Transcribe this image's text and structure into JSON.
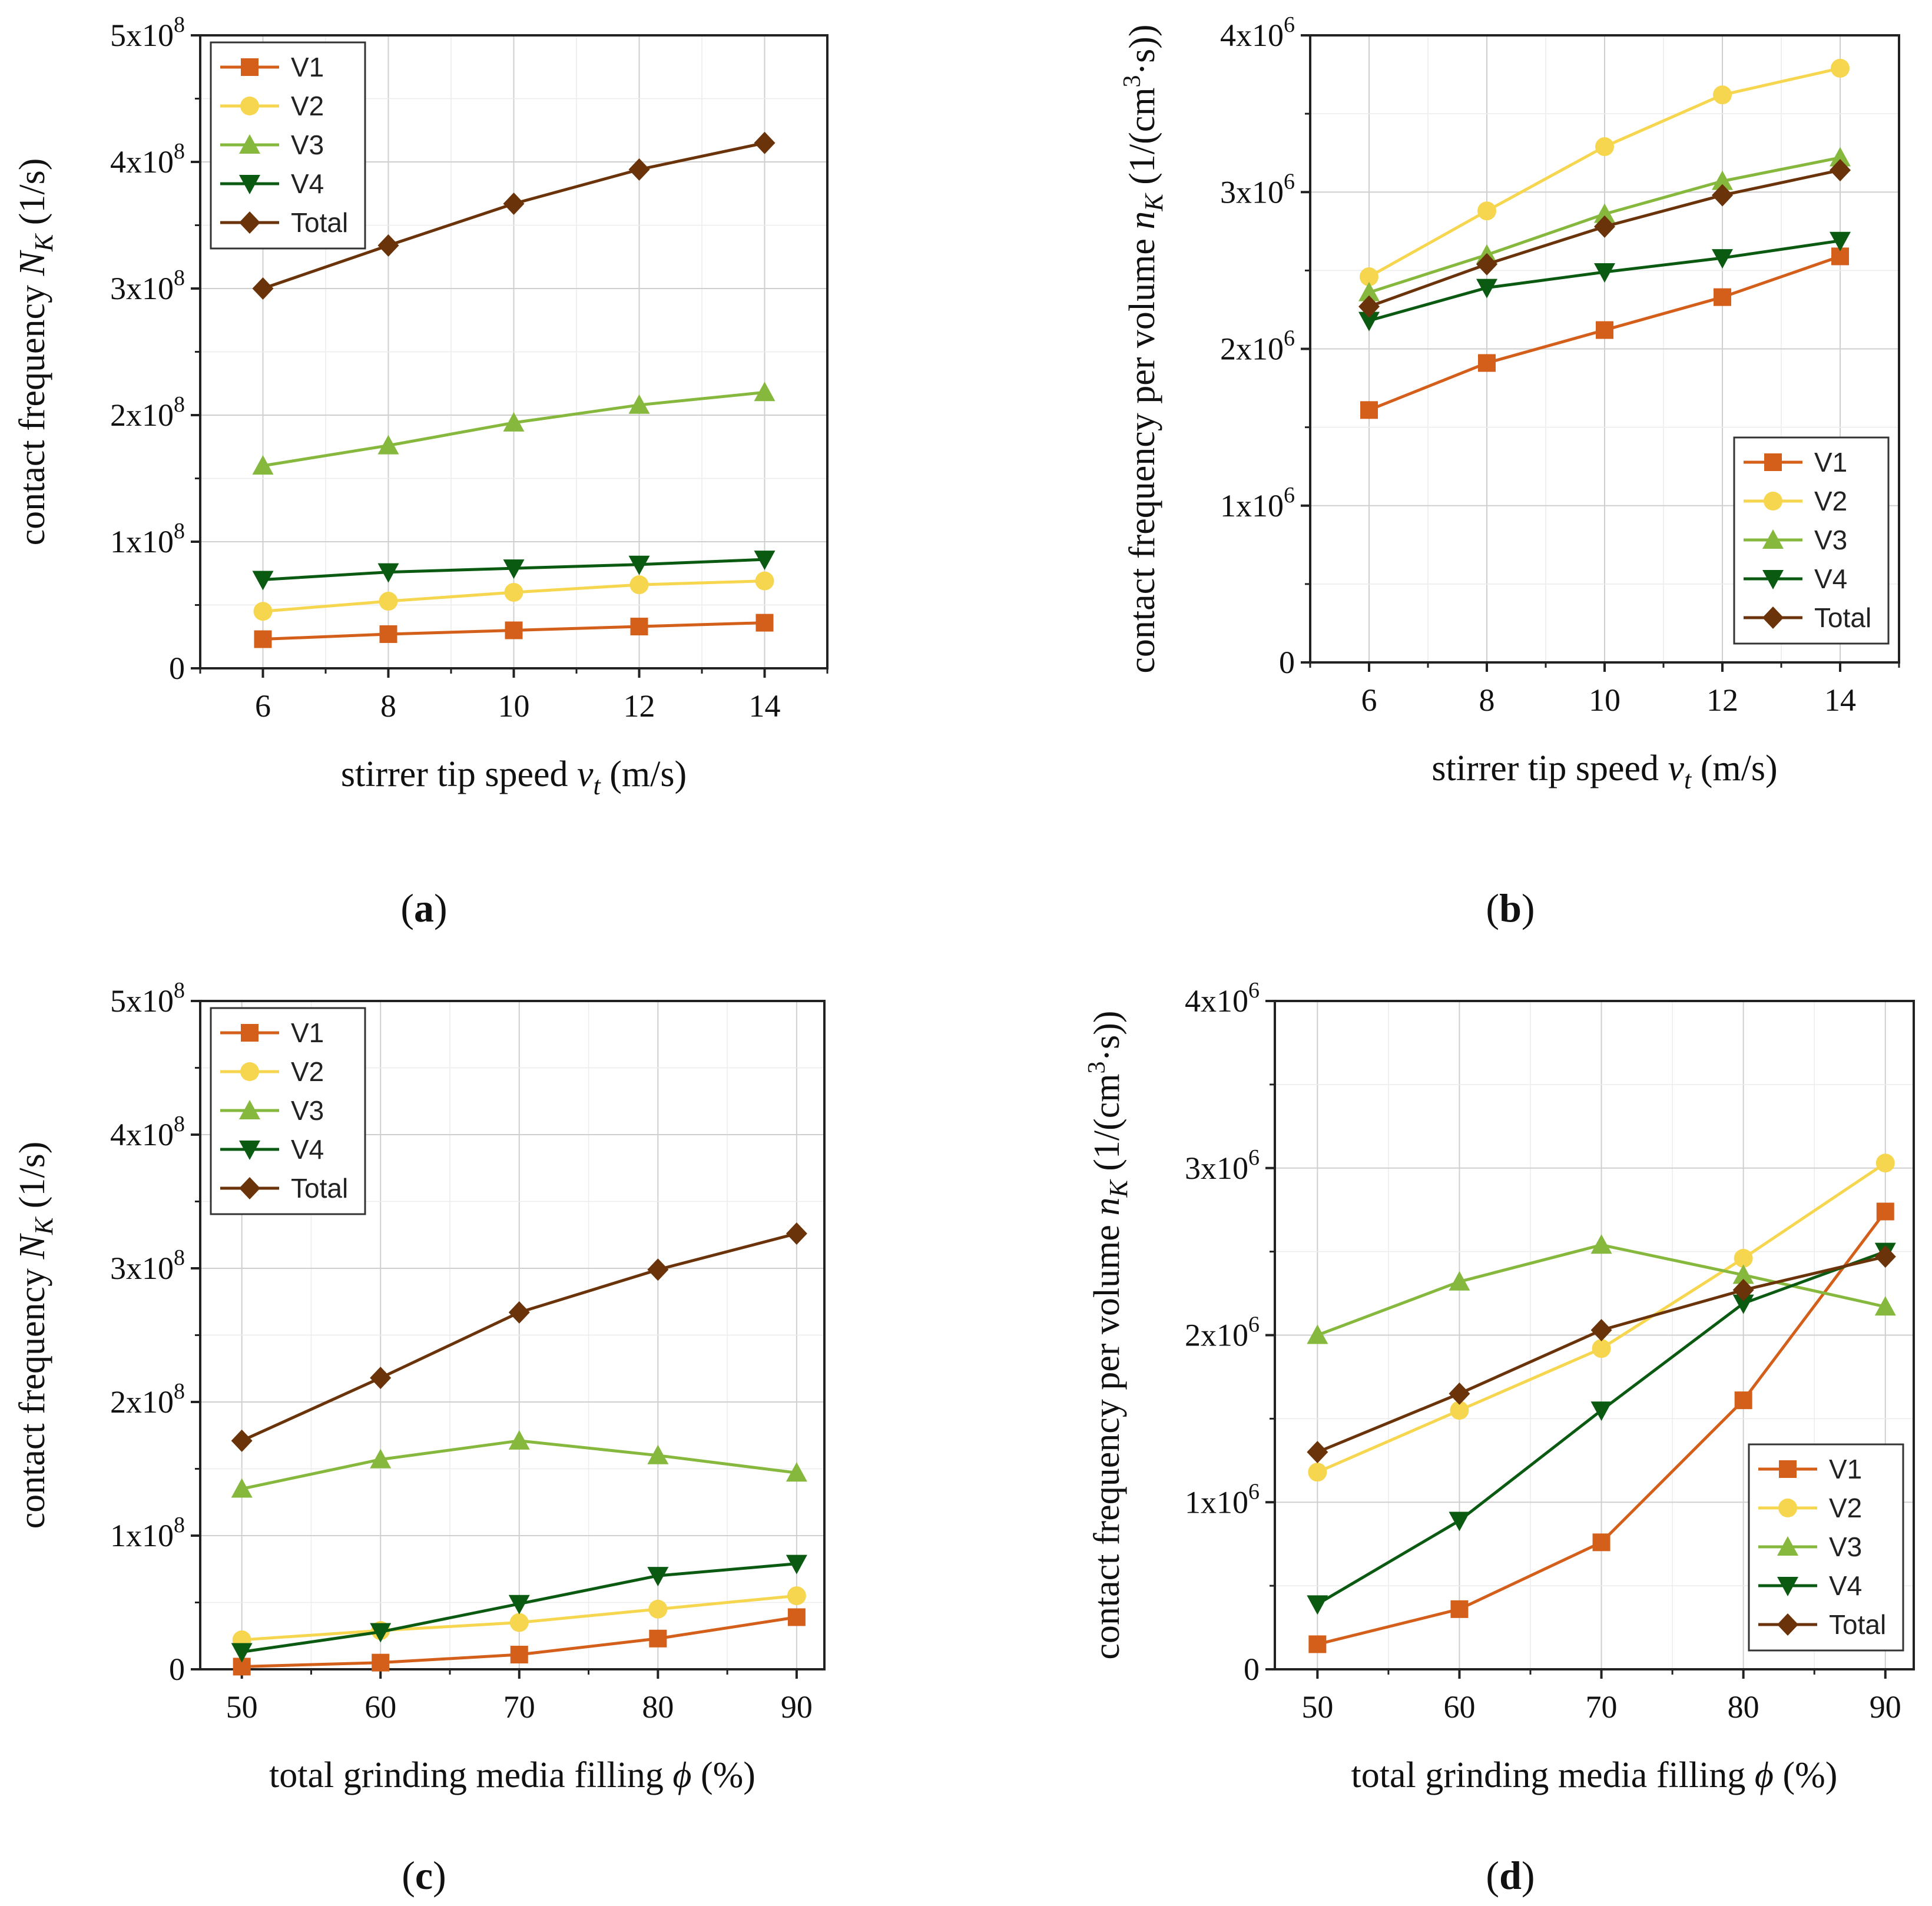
{
  "colors": {
    "V1": "#d35f1b",
    "V2": "#f7d64f",
    "V3": "#86b83e",
    "V4": "#0b5a12",
    "Total": "#6b3309"
  },
  "markers": {
    "V1": "square",
    "V2": "circle",
    "V3": "triangle-up",
    "V4": "triangle-down",
    "Total": "diamond"
  },
  "chart_data": [
    {
      "id": "a",
      "panel_label": "(a)",
      "panel_letter": "a",
      "type": "line",
      "xlabel": "stirrer tip speed v_t (m/s)",
      "xlabel_prefix": "stirrer tip speed ",
      "xlabel_var": "v",
      "xlabel_sub": "t",
      "xlabel_suffix": " (m/s)",
      "ylabel": "contact frequency N_K (1/s)",
      "ylabel_prefix": "contact frequency ",
      "ylabel_var": "N",
      "ylabel_sub": "K",
      "ylabel_suffix": " (1/s)",
      "xlim": [
        5,
        15
      ],
      "ylim": [
        0,
        500000000
      ],
      "xticks": [
        6,
        8,
        10,
        12,
        14
      ],
      "xtick_labels": [
        "6",
        "8",
        "10",
        "12",
        "14"
      ],
      "yticks": [
        0,
        100000000,
        200000000,
        300000000,
        400000000,
        500000000
      ],
      "ytick_labels": [
        {
          "m": "0",
          "e": ""
        },
        {
          "m": "1x10",
          "e": "8"
        },
        {
          "m": "2x10",
          "e": "8"
        },
        {
          "m": "3x10",
          "e": "8"
        },
        {
          "m": "4x10",
          "e": "8"
        },
        {
          "m": "5x10",
          "e": "8"
        }
      ],
      "legend_position": "top-left",
      "x": [
        6,
        8,
        10,
        12,
        14
      ],
      "series": [
        {
          "name": "V1",
          "values": [
            23000000,
            27000000,
            30000000,
            33000000,
            36000000
          ]
        },
        {
          "name": "V2",
          "values": [
            45000000,
            53000000,
            60000000,
            66000000,
            69000000
          ]
        },
        {
          "name": "V3",
          "values": [
            160000000,
            176000000,
            194000000,
            208000000,
            218000000
          ]
        },
        {
          "name": "V4",
          "values": [
            70000000,
            76000000,
            79000000,
            82000000,
            86000000
          ]
        },
        {
          "name": "Total",
          "values": [
            300000000,
            334000000,
            367000000,
            394000000,
            415000000
          ]
        }
      ]
    },
    {
      "id": "b",
      "panel_label": "(b)",
      "panel_letter": "b",
      "type": "line",
      "xlabel": "stirrer tip speed v_t (m/s)",
      "xlabel_prefix": "stirrer tip speed ",
      "xlabel_var": "v",
      "xlabel_sub": "t",
      "xlabel_suffix": " (m/s)",
      "ylabel": "contact frequency per volume n_K (1/(cm^3·s))",
      "ylabel_prefix": "contact frequency per volume ",
      "ylabel_var": "n",
      "ylabel_sub": "K",
      "ylabel_suffix_a": " (1/(cm",
      "ylabel_sup": "3",
      "ylabel_suffix_b": "·s))",
      "xlim": [
        5,
        15
      ],
      "ylim": [
        0,
        4000000
      ],
      "xticks": [
        6,
        8,
        10,
        12,
        14
      ],
      "xtick_labels": [
        "6",
        "8",
        "10",
        "12",
        "14"
      ],
      "yticks": [
        0,
        1000000,
        2000000,
        3000000,
        4000000
      ],
      "ytick_labels": [
        {
          "m": "0",
          "e": ""
        },
        {
          "m": "1x10",
          "e": "6"
        },
        {
          "m": "2x10",
          "e": "6"
        },
        {
          "m": "3x10",
          "e": "6"
        },
        {
          "m": "4x10",
          "e": "6"
        }
      ],
      "legend_position": "bottom-right",
      "x": [
        6,
        8,
        10,
        12,
        14
      ],
      "series": [
        {
          "name": "V1",
          "values": [
            1610000,
            1910000,
            2120000,
            2330000,
            2590000
          ]
        },
        {
          "name": "V2",
          "values": [
            2460000,
            2880000,
            3290000,
            3620000,
            3790000
          ]
        },
        {
          "name": "V3",
          "values": [
            2360000,
            2600000,
            2860000,
            3070000,
            3220000
          ]
        },
        {
          "name": "V4",
          "values": [
            2180000,
            2390000,
            2490000,
            2580000,
            2690000
          ]
        },
        {
          "name": "Total",
          "values": [
            2270000,
            2540000,
            2780000,
            2980000,
            3140000
          ]
        }
      ]
    },
    {
      "id": "c",
      "panel_label": "(c)",
      "panel_letter": "c",
      "type": "line",
      "xlabel": "total grinding media filling ϕ (%)",
      "xlabel_prefix": "total grinding media filling ",
      "xlabel_var": "ϕ",
      "xlabel_sub": "",
      "xlabel_suffix": " (%)",
      "ylabel": "contact frequency N_K (1/s)",
      "ylabel_prefix": "contact frequency ",
      "ylabel_var": "N",
      "ylabel_sub": "K",
      "ylabel_suffix": " (1/s)",
      "xlim": [
        47,
        92
      ],
      "ylim": [
        0,
        500000000
      ],
      "xticks": [
        50,
        60,
        70,
        80,
        90
      ],
      "xtick_labels": [
        "50",
        "60",
        "70",
        "80",
        "90"
      ],
      "yticks": [
        0,
        100000000,
        200000000,
        300000000,
        400000000,
        500000000
      ],
      "ytick_labels": [
        {
          "m": "0",
          "e": ""
        },
        {
          "m": "1x10",
          "e": "8"
        },
        {
          "m": "2x10",
          "e": "8"
        },
        {
          "m": "3x10",
          "e": "8"
        },
        {
          "m": "4x10",
          "e": "8"
        },
        {
          "m": "5x10",
          "e": "8"
        }
      ],
      "legend_position": "top-left",
      "x": [
        50,
        60,
        70,
        80,
        90
      ],
      "series": [
        {
          "name": "V1",
          "values": [
            2000000,
            5000000,
            11000000,
            23000000,
            39000000
          ]
        },
        {
          "name": "V2",
          "values": [
            22000000,
            29000000,
            35000000,
            45000000,
            55000000
          ]
        },
        {
          "name": "V3",
          "values": [
            135000000,
            157000000,
            171000000,
            160000000,
            147000000
          ]
        },
        {
          "name": "V4",
          "values": [
            13000000,
            28000000,
            49000000,
            70000000,
            79000000
          ]
        },
        {
          "name": "Total",
          "values": [
            171000000,
            218000000,
            267000000,
            299000000,
            326000000
          ]
        }
      ]
    },
    {
      "id": "d",
      "panel_label": "(d)",
      "panel_letter": "d",
      "type": "line",
      "xlabel": "total grinding media filling ϕ (%)",
      "xlabel_prefix": "total grinding media filling ",
      "xlabel_var": "ϕ",
      "xlabel_sub": "",
      "xlabel_suffix": " (%)",
      "ylabel": "contact frequency per volume n_K (1/(cm^3·s))",
      "ylabel_prefix": "contact frequency per volume ",
      "ylabel_var": "n",
      "ylabel_sub": "K",
      "ylabel_suffix_a": " (1/(cm",
      "ylabel_sup": "3",
      "ylabel_suffix_b": "·s))",
      "xlim": [
        47,
        92
      ],
      "ylim": [
        0,
        4000000
      ],
      "xticks": [
        50,
        60,
        70,
        80,
        90
      ],
      "xtick_labels": [
        "50",
        "60",
        "70",
        "80",
        "90"
      ],
      "yticks": [
        0,
        1000000,
        2000000,
        3000000,
        4000000
      ],
      "ytick_labels": [
        {
          "m": "0",
          "e": ""
        },
        {
          "m": "1x10",
          "e": "6"
        },
        {
          "m": "2x10",
          "e": "6"
        },
        {
          "m": "3x10",
          "e": "6"
        },
        {
          "m": "4x10",
          "e": "6"
        }
      ],
      "legend_position": "bottom-right",
      "x": [
        50,
        60,
        70,
        80,
        90
      ],
      "series": [
        {
          "name": "V1",
          "values": [
            150000,
            360000,
            760000,
            1610000,
            2740000
          ]
        },
        {
          "name": "V2",
          "values": [
            1180000,
            1550000,
            1920000,
            2460000,
            3030000
          ]
        },
        {
          "name": "V3",
          "values": [
            2000000,
            2320000,
            2540000,
            2360000,
            2170000
          ]
        },
        {
          "name": "V4",
          "values": [
            390000,
            890000,
            1550000,
            2190000,
            2500000
          ]
        },
        {
          "name": "Total",
          "values": [
            1300000,
            1650000,
            2030000,
            2270000,
            2470000
          ]
        }
      ]
    }
  ]
}
